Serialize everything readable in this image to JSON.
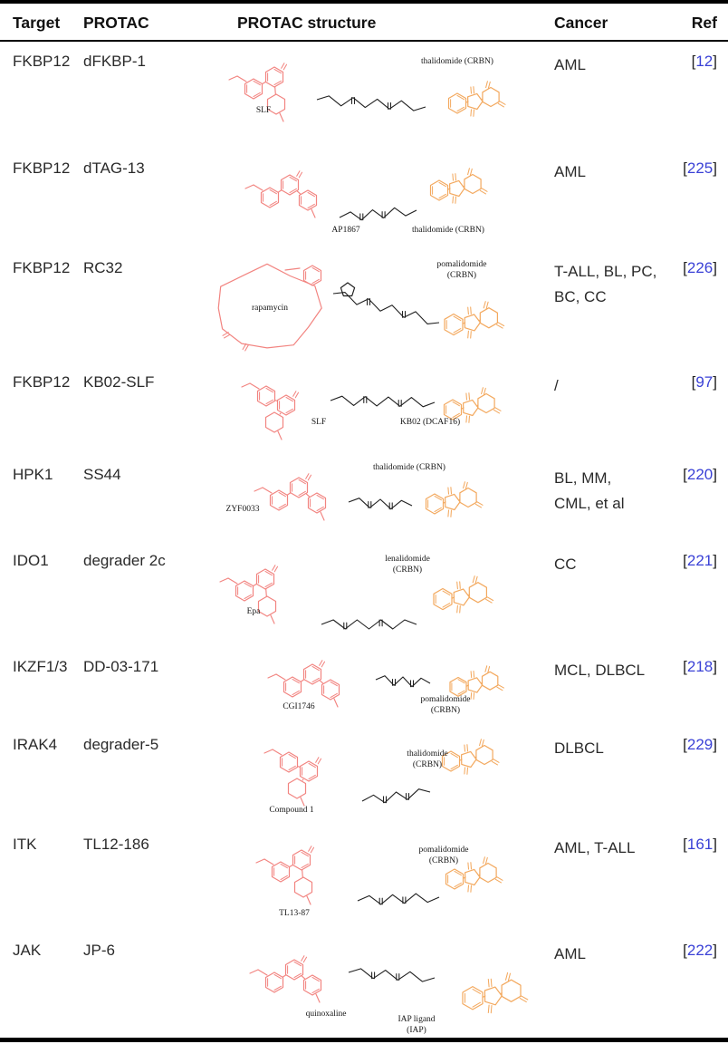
{
  "table": {
    "columns": [
      "Target",
      "PROTAC",
      "PROTAC structure",
      "Cancer",
      "Ref"
    ],
    "ref_open": "[",
    "ref_close": "]",
    "colors": {
      "warhead": "#f28480",
      "e3_ligand": "#f3a95f",
      "linker": "#1f1f1f",
      "ref_number": "#3a41d6"
    },
    "rows": [
      {
        "target": "FKBP12",
        "protac": "dFKBP-1",
        "cancer": "AML",
        "ref": "12",
        "structure": {
          "warhead_label": "SLF",
          "e3_label": "thalidomide (CRBN)"
        }
      },
      {
        "target": "FKBP12",
        "protac": "dTAG-13",
        "cancer": "AML",
        "ref": "225",
        "structure": {
          "warhead_label": "AP1867",
          "e3_label": "thalidomide (CRBN)"
        }
      },
      {
        "target": "FKBP12",
        "protac": "RC32",
        "cancer": "T-ALL, BL, PC,\nBC, CC",
        "ref": "226",
        "structure": {
          "warhead_label": "rapamycin",
          "e3_label": "pomalidomide\n(CRBN)"
        }
      },
      {
        "target": "FKBP12",
        "protac": "KB02-SLF",
        "cancer": "/",
        "ref": "97",
        "structure": {
          "warhead_label": "SLF",
          "e3_label": "KB02 (DCAF16)"
        }
      },
      {
        "target": "HPK1",
        "protac": "SS44",
        "cancer": "BL, MM,\nCML, et al",
        "ref": "220",
        "structure": {
          "warhead_label": "ZYF0033",
          "e3_label": "thalidomide (CRBN)"
        }
      },
      {
        "target": "IDO1",
        "protac": "degrader 2c",
        "cancer": "CC",
        "ref": "221",
        "structure": {
          "warhead_label": "Epa",
          "e3_label": "lenalidomide\n(CRBN)"
        }
      },
      {
        "target": "IKZF1/3",
        "protac": "DD-03-171",
        "cancer": "MCL, DLBCL",
        "ref": "218",
        "structure": {
          "warhead_label": "CGI1746",
          "e3_label": "pomalidomide\n(CRBN)"
        }
      },
      {
        "target": "IRAK4",
        "protac": "degrader-5",
        "cancer": "DLBCL",
        "ref": "229",
        "structure": {
          "warhead_label": "Compound 1",
          "e3_label": "thalidomide\n(CRBN)"
        }
      },
      {
        "target": "ITK",
        "protac": "TL12-186",
        "cancer": "AML, T-ALL",
        "ref": "161",
        "structure": {
          "warhead_label": "TL13-87",
          "e3_label": "pomalidomide\n(CRBN)"
        }
      },
      {
        "target": "JAK",
        "protac": "JP-6",
        "cancer": "AML",
        "ref": "222",
        "structure": {
          "warhead_label": "quinoxaline",
          "e3_label": "IAP ligand\n(IAP)"
        }
      }
    ]
  }
}
